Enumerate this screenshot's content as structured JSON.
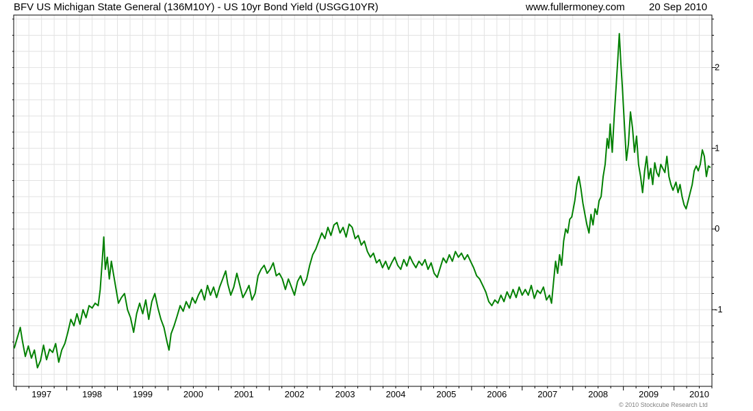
{
  "header": {
    "title": "BFV US Michigan State General (136M10Y) - US 10yr Bond Yield (USGG10YR)",
    "source": "www.fullermoney.com",
    "date": "20 Sep 2010"
  },
  "footer": {
    "copyright": "© 2010 Stockcube Research Ltd"
  },
  "colors": {
    "line": "#008000",
    "grid": "#e2e2e2",
    "axis": "#000000",
    "background": "#ffffff"
  },
  "chart_data": {
    "type": "line",
    "title": "BFV US Michigan State General (136M10Y) - US 10yr Bond Yield (USGG10YR)",
    "x_tick_labels": [
      "1997",
      "1998",
      "1999",
      "2000",
      "2001",
      "2002",
      "2003",
      "2004",
      "2005",
      "2006",
      "2007",
      "2008",
      "2009",
      "2010"
    ],
    "y_tick_labels": [
      "-1",
      "0",
      "1",
      "2"
    ],
    "xlim": [
      1996.95,
      2010.75
    ],
    "ylim": [
      -1.95,
      2.65
    ],
    "y_axis_side": "right",
    "grid": true,
    "series": [
      {
        "points": [
          [
            1996.96,
            -1.48
          ],
          [
            1997.02,
            -1.35
          ],
          [
            1997.08,
            -1.22
          ],
          [
            1997.12,
            -1.38
          ],
          [
            1997.18,
            -1.58
          ],
          [
            1997.24,
            -1.45
          ],
          [
            1997.3,
            -1.6
          ],
          [
            1997.36,
            -1.5
          ],
          [
            1997.42,
            -1.72
          ],
          [
            1997.48,
            -1.63
          ],
          [
            1997.54,
            -1.44
          ],
          [
            1997.6,
            -1.62
          ],
          [
            1997.66,
            -1.49
          ],
          [
            1997.72,
            -1.53
          ],
          [
            1997.78,
            -1.42
          ],
          [
            1997.84,
            -1.65
          ],
          [
            1997.9,
            -1.5
          ],
          [
            1997.96,
            -1.42
          ],
          [
            1998.02,
            -1.28
          ],
          [
            1998.08,
            -1.12
          ],
          [
            1998.14,
            -1.2
          ],
          [
            1998.2,
            -1.05
          ],
          [
            1998.26,
            -1.18
          ],
          [
            1998.32,
            -1.0
          ],
          [
            1998.38,
            -1.1
          ],
          [
            1998.44,
            -0.95
          ],
          [
            1998.5,
            -0.98
          ],
          [
            1998.56,
            -0.92
          ],
          [
            1998.62,
            -0.95
          ],
          [
            1998.66,
            -0.75
          ],
          [
            1998.7,
            -0.4
          ],
          [
            1998.73,
            -0.1
          ],
          [
            1998.76,
            -0.5
          ],
          [
            1998.8,
            -0.35
          ],
          [
            1998.84,
            -0.62
          ],
          [
            1998.88,
            -0.4
          ],
          [
            1998.92,
            -0.55
          ],
          [
            1998.96,
            -0.7
          ],
          [
            1999.02,
            -0.92
          ],
          [
            1999.08,
            -0.85
          ],
          [
            1999.14,
            -0.8
          ],
          [
            1999.2,
            -1.0
          ],
          [
            1999.26,
            -1.1
          ],
          [
            1999.32,
            -1.28
          ],
          [
            1999.38,
            -1.05
          ],
          [
            1999.44,
            -0.92
          ],
          [
            1999.5,
            -1.05
          ],
          [
            1999.56,
            -0.88
          ],
          [
            1999.62,
            -1.12
          ],
          [
            1999.68,
            -0.9
          ],
          [
            1999.74,
            -0.8
          ],
          [
            1999.8,
            -0.98
          ],
          [
            1999.86,
            -1.12
          ],
          [
            1999.92,
            -1.22
          ],
          [
            1999.98,
            -1.4
          ],
          [
            2000.02,
            -1.5
          ],
          [
            2000.06,
            -1.3
          ],
          [
            2000.12,
            -1.2
          ],
          [
            2000.18,
            -1.08
          ],
          [
            2000.24,
            -0.95
          ],
          [
            2000.3,
            -1.02
          ],
          [
            2000.36,
            -0.9
          ],
          [
            2000.42,
            -0.98
          ],
          [
            2000.48,
            -0.85
          ],
          [
            2000.54,
            -0.92
          ],
          [
            2000.6,
            -0.82
          ],
          [
            2000.66,
            -0.75
          ],
          [
            2000.72,
            -0.88
          ],
          [
            2000.78,
            -0.7
          ],
          [
            2000.84,
            -0.82
          ],
          [
            2000.9,
            -0.72
          ],
          [
            2000.96,
            -0.85
          ],
          [
            2001.02,
            -0.72
          ],
          [
            2001.08,
            -0.62
          ],
          [
            2001.14,
            -0.52
          ],
          [
            2001.18,
            -0.68
          ],
          [
            2001.24,
            -0.82
          ],
          [
            2001.3,
            -0.72
          ],
          [
            2001.36,
            -0.55
          ],
          [
            2001.42,
            -0.7
          ],
          [
            2001.48,
            -0.85
          ],
          [
            2001.54,
            -0.78
          ],
          [
            2001.6,
            -0.7
          ],
          [
            2001.66,
            -0.88
          ],
          [
            2001.72,
            -0.8
          ],
          [
            2001.78,
            -0.58
          ],
          [
            2001.84,
            -0.5
          ],
          [
            2001.9,
            -0.45
          ],
          [
            2001.96,
            -0.55
          ],
          [
            2002.02,
            -0.5
          ],
          [
            2002.08,
            -0.42
          ],
          [
            2002.14,
            -0.58
          ],
          [
            2002.2,
            -0.55
          ],
          [
            2002.26,
            -0.62
          ],
          [
            2002.32,
            -0.75
          ],
          [
            2002.38,
            -0.62
          ],
          [
            2002.44,
            -0.72
          ],
          [
            2002.5,
            -0.82
          ],
          [
            2002.56,
            -0.65
          ],
          [
            2002.62,
            -0.58
          ],
          [
            2002.68,
            -0.7
          ],
          [
            2002.74,
            -0.62
          ],
          [
            2002.8,
            -0.45
          ],
          [
            2002.86,
            -0.32
          ],
          [
            2002.92,
            -0.25
          ],
          [
            2002.98,
            -0.15
          ],
          [
            2003.04,
            -0.05
          ],
          [
            2003.1,
            -0.12
          ],
          [
            2003.16,
            0.02
          ],
          [
            2003.22,
            -0.08
          ],
          [
            2003.28,
            0.05
          ],
          [
            2003.34,
            0.08
          ],
          [
            2003.4,
            -0.05
          ],
          [
            2003.46,
            0.02
          ],
          [
            2003.52,
            -0.1
          ],
          [
            2003.58,
            0.06
          ],
          [
            2003.64,
            0.02
          ],
          [
            2003.7,
            -0.12
          ],
          [
            2003.76,
            -0.08
          ],
          [
            2003.82,
            -0.2
          ],
          [
            2003.88,
            -0.15
          ],
          [
            2003.94,
            -0.28
          ],
          [
            2004.0,
            -0.35
          ],
          [
            2004.06,
            -0.3
          ],
          [
            2004.12,
            -0.42
          ],
          [
            2004.18,
            -0.38
          ],
          [
            2004.24,
            -0.48
          ],
          [
            2004.3,
            -0.4
          ],
          [
            2004.36,
            -0.5
          ],
          [
            2004.42,
            -0.42
          ],
          [
            2004.48,
            -0.35
          ],
          [
            2004.54,
            -0.45
          ],
          [
            2004.6,
            -0.5
          ],
          [
            2004.66,
            -0.38
          ],
          [
            2004.72,
            -0.46
          ],
          [
            2004.78,
            -0.34
          ],
          [
            2004.84,
            -0.42
          ],
          [
            2004.9,
            -0.48
          ],
          [
            2004.96,
            -0.4
          ],
          [
            2005.02,
            -0.45
          ],
          [
            2005.08,
            -0.38
          ],
          [
            2005.14,
            -0.5
          ],
          [
            2005.2,
            -0.42
          ],
          [
            2005.26,
            -0.55
          ],
          [
            2005.32,
            -0.6
          ],
          [
            2005.38,
            -0.48
          ],
          [
            2005.44,
            -0.36
          ],
          [
            2005.5,
            -0.42
          ],
          [
            2005.56,
            -0.32
          ],
          [
            2005.62,
            -0.4
          ],
          [
            2005.68,
            -0.28
          ],
          [
            2005.74,
            -0.35
          ],
          [
            2005.8,
            -0.3
          ],
          [
            2005.86,
            -0.38
          ],
          [
            2005.92,
            -0.32
          ],
          [
            2005.98,
            -0.4
          ],
          [
            2006.04,
            -0.48
          ],
          [
            2006.1,
            -0.58
          ],
          [
            2006.16,
            -0.62
          ],
          [
            2006.22,
            -0.7
          ],
          [
            2006.28,
            -0.78
          ],
          [
            2006.34,
            -0.9
          ],
          [
            2006.4,
            -0.95
          ],
          [
            2006.46,
            -0.88
          ],
          [
            2006.52,
            -0.92
          ],
          [
            2006.58,
            -0.82
          ],
          [
            2006.64,
            -0.9
          ],
          [
            2006.7,
            -0.78
          ],
          [
            2006.76,
            -0.86
          ],
          [
            2006.82,
            -0.75
          ],
          [
            2006.88,
            -0.85
          ],
          [
            2006.94,
            -0.72
          ],
          [
            2007.0,
            -0.82
          ],
          [
            2007.06,
            -0.75
          ],
          [
            2007.12,
            -0.82
          ],
          [
            2007.18,
            -0.7
          ],
          [
            2007.24,
            -0.86
          ],
          [
            2007.3,
            -0.76
          ],
          [
            2007.36,
            -0.8
          ],
          [
            2007.42,
            -0.72
          ],
          [
            2007.48,
            -0.88
          ],
          [
            2007.54,
            -0.82
          ],
          [
            2007.58,
            -0.92
          ],
          [
            2007.62,
            -0.65
          ],
          [
            2007.66,
            -0.4
          ],
          [
            2007.7,
            -0.55
          ],
          [
            2007.74,
            -0.32
          ],
          [
            2007.78,
            -0.45
          ],
          [
            2007.82,
            -0.15
          ],
          [
            2007.86,
            0.0
          ],
          [
            2007.9,
            -0.05
          ],
          [
            2007.94,
            0.12
          ],
          [
            2007.98,
            0.15
          ],
          [
            2008.04,
            0.35
          ],
          [
            2008.08,
            0.55
          ],
          [
            2008.12,
            0.65
          ],
          [
            2008.16,
            0.5
          ],
          [
            2008.2,
            0.32
          ],
          [
            2008.24,
            0.18
          ],
          [
            2008.28,
            0.05
          ],
          [
            2008.32,
            -0.05
          ],
          [
            2008.36,
            0.18
          ],
          [
            2008.4,
            0.05
          ],
          [
            2008.44,
            0.25
          ],
          [
            2008.48,
            0.18
          ],
          [
            2008.52,
            0.35
          ],
          [
            2008.56,
            0.4
          ],
          [
            2008.6,
            0.65
          ],
          [
            2008.64,
            0.8
          ],
          [
            2008.68,
            1.12
          ],
          [
            2008.71,
            1.0
          ],
          [
            2008.74,
            1.3
          ],
          [
            2008.78,
            0.95
          ],
          [
            2008.82,
            1.4
          ],
          [
            2008.86,
            1.8
          ],
          [
            2008.89,
            2.1
          ],
          [
            2008.92,
            2.42
          ],
          [
            2008.95,
            2.05
          ],
          [
            2008.98,
            1.75
          ],
          [
            2009.02,
            1.3
          ],
          [
            2009.06,
            0.85
          ],
          [
            2009.1,
            1.05
          ],
          [
            2009.14,
            1.45
          ],
          [
            2009.18,
            1.25
          ],
          [
            2009.22,
            0.95
          ],
          [
            2009.26,
            1.15
          ],
          [
            2009.3,
            0.8
          ],
          [
            2009.34,
            0.65
          ],
          [
            2009.38,
            0.45
          ],
          [
            2009.42,
            0.72
          ],
          [
            2009.46,
            0.9
          ],
          [
            2009.5,
            0.62
          ],
          [
            2009.54,
            0.75
          ],
          [
            2009.58,
            0.55
          ],
          [
            2009.62,
            0.82
          ],
          [
            2009.66,
            0.7
          ],
          [
            2009.7,
            0.65
          ],
          [
            2009.74,
            0.8
          ],
          [
            2009.78,
            0.75
          ],
          [
            2009.82,
            0.7
          ],
          [
            2009.86,
            0.9
          ],
          [
            2009.9,
            0.65
          ],
          [
            2009.94,
            0.55
          ],
          [
            2009.98,
            0.48
          ],
          [
            2010.04,
            0.58
          ],
          [
            2010.08,
            0.45
          ],
          [
            2010.12,
            0.55
          ],
          [
            2010.16,
            0.4
          ],
          [
            2010.2,
            0.3
          ],
          [
            2010.24,
            0.25
          ],
          [
            2010.28,
            0.35
          ],
          [
            2010.32,
            0.45
          ],
          [
            2010.36,
            0.55
          ],
          [
            2010.4,
            0.72
          ],
          [
            2010.44,
            0.78
          ],
          [
            2010.48,
            0.72
          ],
          [
            2010.52,
            0.8
          ],
          [
            2010.56,
            0.98
          ],
          [
            2010.6,
            0.9
          ],
          [
            2010.64,
            0.65
          ],
          [
            2010.68,
            0.78
          ],
          [
            2010.72,
            0.76
          ]
        ]
      }
    ]
  }
}
